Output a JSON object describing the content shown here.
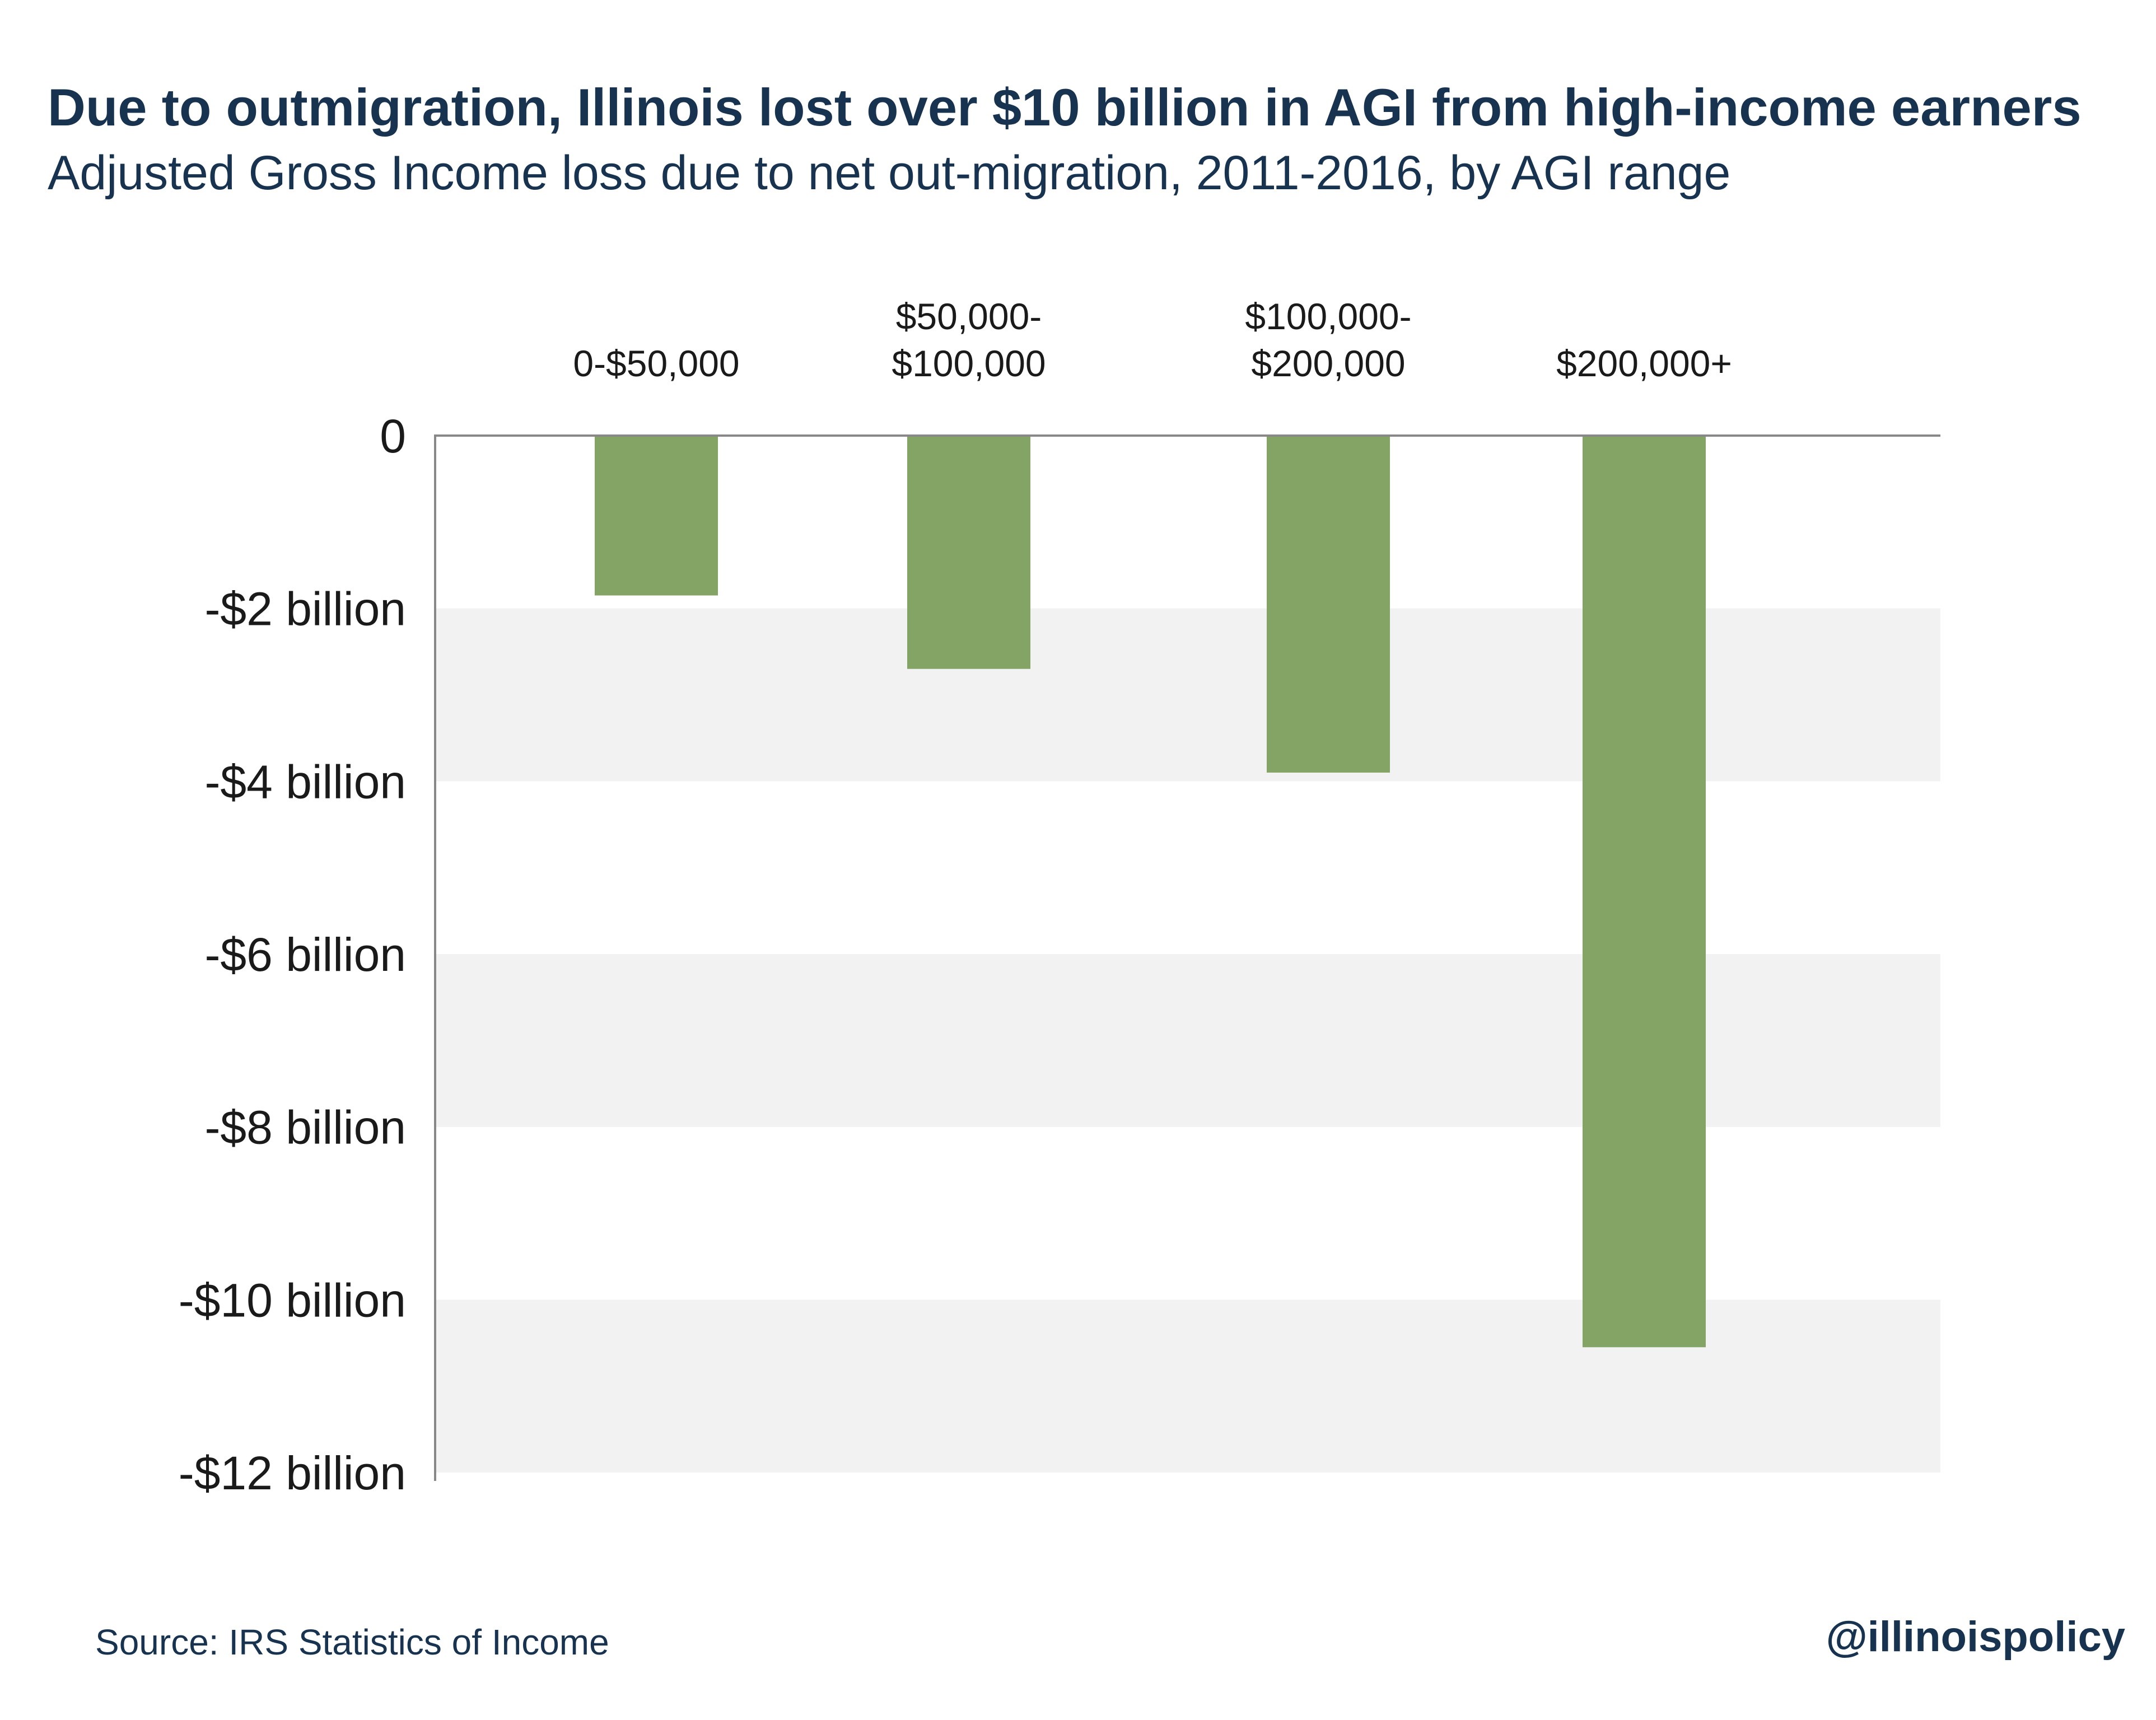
{
  "header": {
    "title": "Due to outmigration, Illinois lost over $10 billion in AGI from high-income earners",
    "subtitle": "Adjusted Gross Income loss due to net out-migration, 2011-2016, by AGI range"
  },
  "footer": {
    "source": "Source: IRS Statistics of Income",
    "handle": "@illinoispolicy"
  },
  "colors": {
    "bar": "#84a466",
    "band": "#f2f2f2",
    "axis": "#888888",
    "text": "#17334f",
    "label": "#1a1a1a"
  },
  "chart_data": {
    "type": "bar",
    "title": "Due to outmigration, Illinois lost over $10 billion in AGI from high-income earners",
    "subtitle": "Adjusted Gross Income loss due to net out-migration, 2011-2016, by AGI range",
    "xlabel": "",
    "ylabel": "",
    "units": "billion USD",
    "categories": [
      [
        "0-$50,000"
      ],
      [
        "$50,000-",
        "$100,000"
      ],
      [
        "$100,000-",
        "$200,000"
      ],
      [
        "$200,000+"
      ]
    ],
    "values": [
      -1.85,
      -2.7,
      -3.9,
      -10.55
    ],
    "ylim": [
      -12,
      0
    ],
    "yticks": [
      {
        "value": 0,
        "label": "0"
      },
      {
        "value": -2,
        "label": "-$2 billion"
      },
      {
        "value": -4,
        "label": "-$4 billion"
      },
      {
        "value": -6,
        "label": "-$6 billion"
      },
      {
        "value": -8,
        "label": "-$8 billion"
      },
      {
        "value": -10,
        "label": "-$10 billion"
      },
      {
        "value": -12,
        "label": "-$12 billion"
      }
    ],
    "grid": "alternating horizontal bands",
    "legend": "none"
  }
}
